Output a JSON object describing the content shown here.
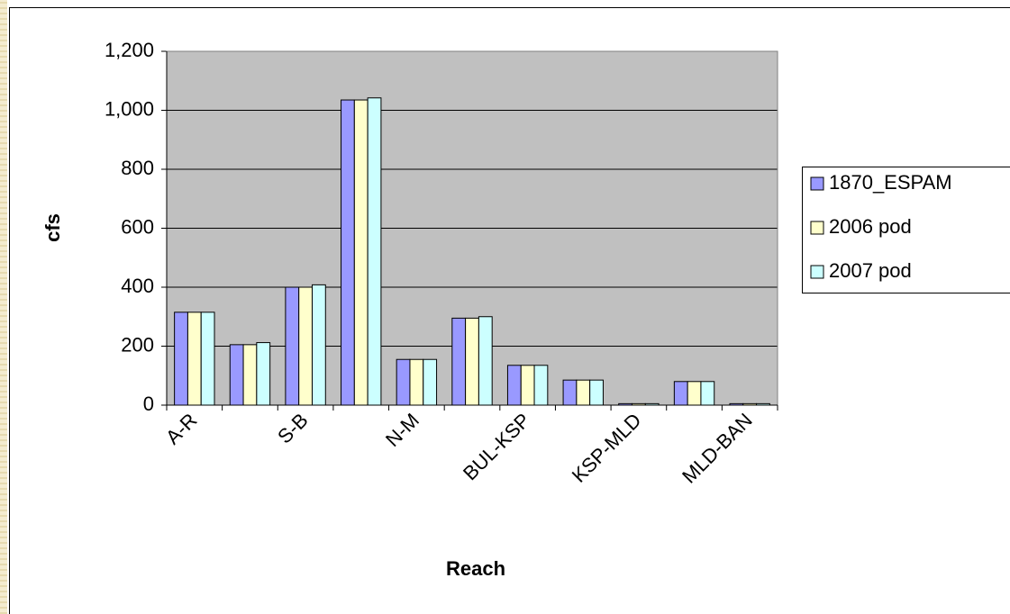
{
  "chart_data": {
    "type": "bar",
    "y_label": "cfs",
    "x_label": "Reach",
    "categories": [
      "A-R",
      null,
      "S-B",
      null,
      "N-M",
      null,
      "BUL-KSP",
      null,
      "KSP-MLD",
      null,
      "MLD-BAN"
    ],
    "series": [
      {
        "name": "1870_ESPAM",
        "color": "#9999ff",
        "values": [
          315,
          205,
          400,
          1035,
          155,
          295,
          135,
          85,
          5,
          80,
          5
        ]
      },
      {
        "name": "2006 pod",
        "color": "#ffffcc",
        "values": [
          315,
          205,
          400,
          1035,
          155,
          295,
          135,
          85,
          5,
          80,
          5
        ]
      },
      {
        "name": "2007 pod",
        "color": "#ccffff",
        "values": [
          315,
          212,
          408,
          1042,
          155,
          300,
          135,
          85,
          5,
          80,
          5
        ]
      }
    ],
    "ylim": [
      0,
      1200
    ],
    "yticks": [
      0,
      200,
      400,
      600,
      800,
      {
        "value": 1000,
        "label": "1,000"
      },
      {
        "value": 1200,
        "label": "1,200"
      }
    ],
    "grid": true,
    "plot_background": "#c0c0c0",
    "legend": "right"
  }
}
